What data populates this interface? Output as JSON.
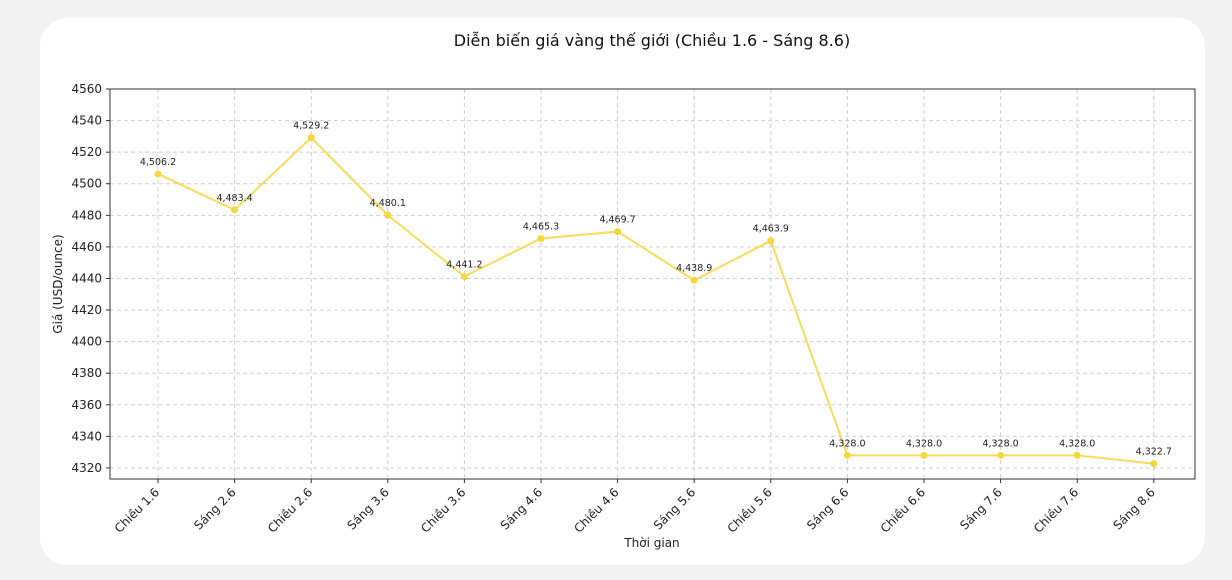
{
  "chart_data": {
    "type": "line",
    "title": "Diễn biến giá vàng thế giới (Chiều 1.6 - Sáng 8.6)",
    "xlabel": "Thời gian",
    "ylabel": "Giá (USD/ounce)",
    "categories": [
      "Chiều 1.6",
      "Sáng 2.6",
      "Chiều 2.6",
      "Sáng 3.6",
      "Chiều 3.6",
      "Sáng 4.6",
      "Chiều 4.6",
      "Sáng 5.6",
      "Chiều 5.6",
      "Sáng 6.6",
      "Chiều 6.6",
      "Sáng 7.6",
      "Chiều 7.6",
      "Sáng 8.6"
    ],
    "values": [
      4506.2,
      4483.4,
      4529.2,
      4480.1,
      4441.2,
      4465.3,
      4469.7,
      4438.9,
      4463.9,
      4328.0,
      4328.0,
      4328.0,
      4328.0,
      4322.7
    ],
    "data_labels": [
      "4,506.2",
      "4,483.4",
      "4,529.2",
      "4,480.1",
      "4,441.2",
      "4,465.3",
      "4,469.7",
      "4,438.9",
      "4,463.9",
      "4,328.0",
      "4,328.0",
      "4,328.0",
      "4,328.0",
      "4,322.7"
    ],
    "yticks": [
      4320,
      4340,
      4360,
      4380,
      4400,
      4420,
      4440,
      4460,
      4480,
      4500,
      4520,
      4540,
      4560
    ],
    "ylim": [
      4313,
      4560
    ],
    "grid": true,
    "line_color": "#f7dc5c",
    "marker_color": "#f5d740"
  }
}
